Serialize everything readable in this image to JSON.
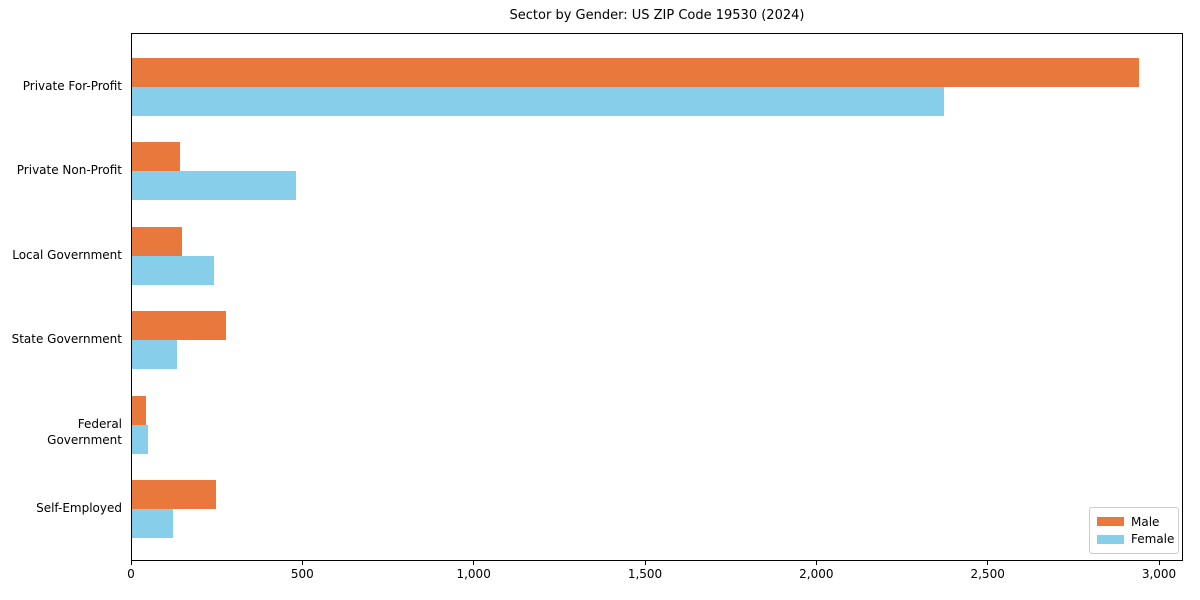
{
  "chart_data": {
    "type": "bar",
    "orientation": "horizontal",
    "title": "Sector by Gender: US ZIP Code 19530 (2024)",
    "categories": [
      "Private For-Profit",
      "Private Non-Profit",
      "Local Government",
      "State Government",
      "Federal Government",
      "Self-Employed"
    ],
    "series": [
      {
        "name": "Male",
        "color": "#e8783c",
        "values": [
          2940,
          140,
          145,
          275,
          42,
          245
        ]
      },
      {
        "name": "Female",
        "color": "#87ceeb",
        "values": [
          2370,
          480,
          240,
          130,
          47,
          120
        ]
      }
    ],
    "xlabel": "",
    "ylabel": "",
    "xlim": [
      0,
      3070
    ],
    "x_ticks": [
      0,
      500,
      1000,
      1500,
      2000,
      2500,
      3000
    ],
    "x_tick_labels": [
      "0",
      "500",
      "1,000",
      "1,500",
      "2,000",
      "2,500",
      "3,000"
    ],
    "legend_position": "lower right",
    "grid": false
  },
  "colors": {
    "spine": "#000000",
    "text": "#000000",
    "legend_border": "#cccccc",
    "background": "#ffffff"
  }
}
